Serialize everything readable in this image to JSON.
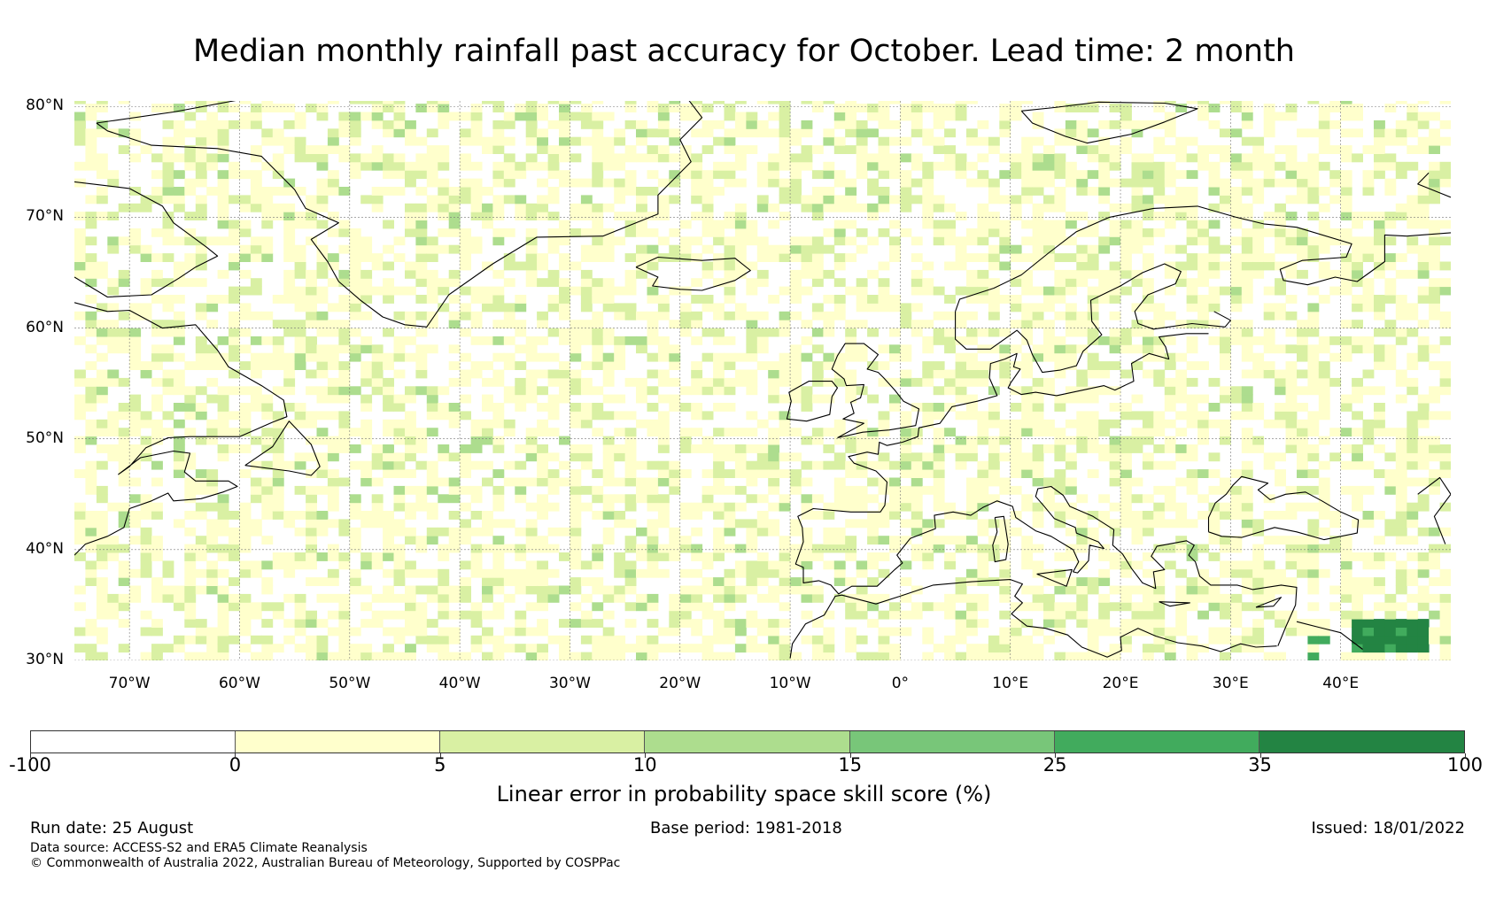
{
  "title": "Median monthly rainfall past accuracy for October. Lead time: 2 month",
  "map": {
    "extent": {
      "lon_min": -75,
      "lon_max": 50,
      "lat_min": 30,
      "lat_max": 80.5
    },
    "lat_ticks": [
      {
        "value": 80,
        "label": "80°N"
      },
      {
        "value": 70,
        "label": "70°N"
      },
      {
        "value": 60,
        "label": "60°N"
      },
      {
        "value": 50,
        "label": "50°N"
      },
      {
        "value": 40,
        "label": "40°N"
      },
      {
        "value": 30,
        "label": "30°N"
      }
    ],
    "lon_ticks": [
      {
        "value": -70,
        "label": "70°W"
      },
      {
        "value": -60,
        "label": "60°W"
      },
      {
        "value": -50,
        "label": "50°W"
      },
      {
        "value": -40,
        "label": "40°W"
      },
      {
        "value": -30,
        "label": "30°W"
      },
      {
        "value": -20,
        "label": "20°W"
      },
      {
        "value": -10,
        "label": "10°W"
      },
      {
        "value": 0,
        "label": "0°"
      },
      {
        "value": 10,
        "label": "10°E"
      },
      {
        "value": 20,
        "label": "20°E"
      },
      {
        "value": 30,
        "label": "30°E"
      },
      {
        "value": 40,
        "label": "40°E"
      }
    ],
    "gridlines": true,
    "coastline_color": "#000000"
  },
  "colorbar": {
    "title": "Linear error in probability space skill score (%)",
    "bounds": [
      "-100",
      "0",
      "5",
      "10",
      "15",
      "25",
      "35",
      "100"
    ],
    "colors": [
      "#ffffff",
      "#ffffcc",
      "#d9f0a3",
      "#addd8e",
      "#78c679",
      "#41ab5d",
      "#238443"
    ]
  },
  "footer": {
    "run_date": "Run date: 25 August",
    "base_period": "Base period: 1981-2018",
    "issued": "Issued: 18/01/2022",
    "data_source": "Data source: ACCESS-S2 and ERA5 Climate Reanalysis",
    "copyright": "© Commonwealth of Australia 2022, Australian Bureau of Meteorology, Supported by COSPPac"
  }
}
